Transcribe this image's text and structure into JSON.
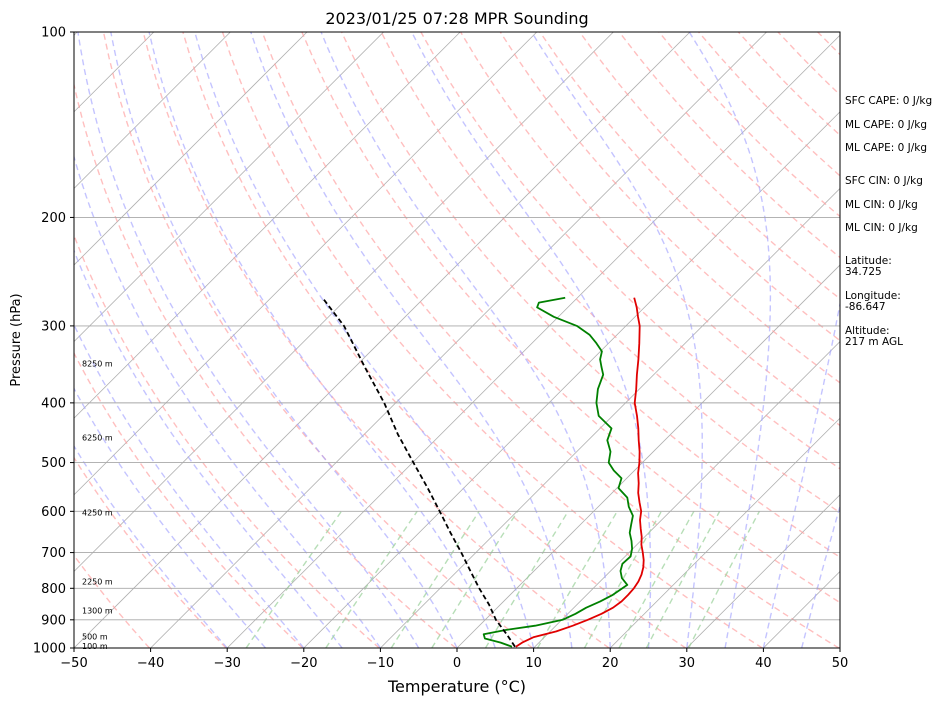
{
  "chart_data": {
    "type": "line",
    "title": "2023/01/25 07:28 MPR Sounding",
    "xlabel": "Temperature (°C)",
    "ylabel": "Pressure (hPa)",
    "xlim": [
      -50,
      50
    ],
    "ylim": [
      1000,
      100
    ],
    "y_scale": "log",
    "skew_t": true,
    "grid": true,
    "x_ticks": [
      -50,
      -40,
      -30,
      -20,
      -10,
      0,
      10,
      20,
      30,
      40,
      50
    ],
    "x_tick_labels": [
      "−50",
      "−40",
      "−30",
      "−20",
      "−10",
      "0",
      "10",
      "20",
      "30",
      "40",
      "50"
    ],
    "y_ticks": [
      1000,
      900,
      800,
      700,
      600,
      500,
      400,
      300,
      200,
      100
    ],
    "y_tick_labels": [
      "1000",
      "900",
      "800",
      "700",
      "600",
      "500",
      "400",
      "300",
      "200",
      "100"
    ],
    "series": [
      {
        "role": "temperature",
        "color": "#e00000",
        "points": [
          [
            995,
            7.5
          ],
          [
            980,
            7.8
          ],
          [
            960,
            8.6
          ],
          [
            940,
            10.8
          ],
          [
            920,
            12.2
          ],
          [
            900,
            13.4
          ],
          [
            880,
            14.4
          ],
          [
            860,
            15.1
          ],
          [
            840,
            15.4
          ],
          [
            820,
            15.4
          ],
          [
            800,
            15.3
          ],
          [
            780,
            15.0
          ],
          [
            760,
            14.5
          ],
          [
            740,
            13.8
          ],
          [
            720,
            12.9
          ],
          [
            700,
            11.8
          ],
          [
            680,
            10.6
          ],
          [
            660,
            9.6
          ],
          [
            640,
            8.4
          ],
          [
            620,
            7.2
          ],
          [
            600,
            6.2
          ],
          [
            580,
            4.8
          ],
          [
            560,
            3.4
          ],
          [
            540,
            2.2
          ],
          [
            520,
            0.8
          ],
          [
            500,
            -0.4
          ],
          [
            480,
            -1.8
          ],
          [
            460,
            -3.4
          ],
          [
            440,
            -5.0
          ],
          [
            420,
            -6.8
          ],
          [
            400,
            -8.8
          ],
          [
            380,
            -10.4
          ],
          [
            360,
            -12.2
          ],
          [
            340,
            -14.0
          ],
          [
            320,
            -16.0
          ],
          [
            300,
            -18.2
          ],
          [
            290,
            -19.6
          ],
          [
            280,
            -21.0
          ],
          [
            270,
            -22.6
          ]
        ]
      },
      {
        "role": "dewpoint",
        "color": "#008000",
        "points": [
          [
            995,
            7.0
          ],
          [
            980,
            5.0
          ],
          [
            965,
            2.4
          ],
          [
            950,
            1.7
          ],
          [
            935,
            4.0
          ],
          [
            920,
            7.3
          ],
          [
            900,
            10.1
          ],
          [
            880,
            11.0
          ],
          [
            860,
            11.6
          ],
          [
            840,
            12.6
          ],
          [
            820,
            13.4
          ],
          [
            800,
            13.8
          ],
          [
            790,
            14.0
          ],
          [
            770,
            12.4
          ],
          [
            750,
            11.3
          ],
          [
            730,
            10.6
          ],
          [
            710,
            10.7
          ],
          [
            690,
            9.9
          ],
          [
            670,
            8.8
          ],
          [
            650,
            7.5
          ],
          [
            630,
            6.6
          ],
          [
            610,
            5.7
          ],
          [
            590,
            4.0
          ],
          [
            570,
            2.6
          ],
          [
            550,
            0.2
          ],
          [
            530,
            -0.7
          ],
          [
            515,
            -2.7
          ],
          [
            500,
            -4.4
          ],
          [
            480,
            -5.6
          ],
          [
            460,
            -7.5
          ],
          [
            440,
            -8.5
          ],
          [
            420,
            -11.8
          ],
          [
            400,
            -13.8
          ],
          [
            380,
            -15.4
          ],
          [
            360,
            -16.6
          ],
          [
            350,
            -17.8
          ],
          [
            340,
            -19.0
          ],
          [
            330,
            -19.8
          ],
          [
            320,
            -21.6
          ],
          [
            310,
            -23.6
          ],
          [
            300,
            -26.4
          ],
          [
            290,
            -30.6
          ],
          [
            280,
            -34.0
          ],
          [
            275,
            -34.4
          ],
          [
            270,
            -31.6
          ]
        ]
      },
      {
        "role": "parcel",
        "color": "#000000",
        "style": "dashed",
        "points": [
          [
            995,
            7.4
          ],
          [
            950,
            4.7
          ],
          [
            900,
            1.4
          ],
          [
            850,
            -1.5
          ],
          [
            800,
            -4.9
          ],
          [
            750,
            -8.3
          ],
          [
            700,
            -11.9
          ],
          [
            650,
            -15.9
          ],
          [
            600,
            -20.1
          ],
          [
            550,
            -24.7
          ],
          [
            500,
            -29.9
          ],
          [
            450,
            -35.6
          ],
          [
            400,
            -41.5
          ],
          [
            350,
            -48.7
          ],
          [
            300,
            -56.8
          ],
          [
            270,
            -63.3
          ]
        ]
      }
    ],
    "reference_lines": {
      "isotherms_color": "#b0b0b0",
      "dry_adiabats_color": "#ff9c9c",
      "moist_adiabats_color": "#a4a4ff",
      "mixing_ratio_color": "#9fd39f"
    },
    "height_labels": [
      "100 m",
      "500 m",
      "1300 m",
      "2250 m",
      "4250 m",
      "6250 m",
      "8250 m"
    ],
    "height_label_pressures": [
      993,
      958,
      870,
      780,
      603,
      455,
      345
    ],
    "side_info": [
      "SFC CAPE: 0 J/kg",
      "ML CAPE: 0 J/kg",
      "ML CAPE: 0 J/kg",
      "SFC CIN: 0 J/kg",
      "ML CIN: 0 J/kg",
      "ML CIN: 0 J/kg",
      "Latitude:",
      "34.725",
      "Longitude:",
      "-86.647",
      "Altitude:",
      "217 m AGL"
    ]
  }
}
